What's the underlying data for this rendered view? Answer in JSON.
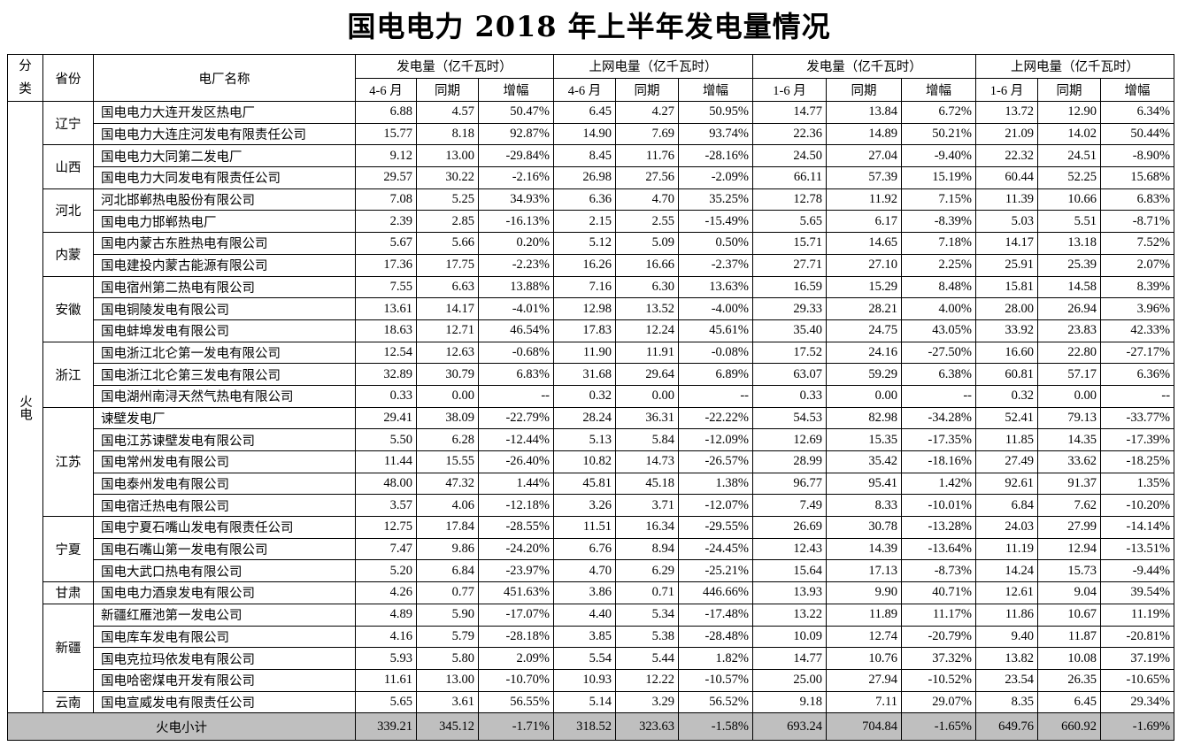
{
  "title": "国电电力 2018 年上半年发电量情况",
  "header": {
    "category": "分类",
    "category_line1": "分",
    "category_line2": "类",
    "province": "省份",
    "plant": "电厂名称",
    "groups": [
      "发电量（亿千瓦时）",
      "上网电量（亿千瓦时）",
      "发电量（亿千瓦时）",
      "上网电量（亿千瓦时）"
    ],
    "subs": [
      "4-6 月",
      "同期",
      "增幅",
      "4-6 月",
      "同期",
      "增幅",
      "1-6 月",
      "同期",
      "增幅",
      "1-6 月",
      "同期",
      "增幅"
    ]
  },
  "category": "火电",
  "provinces": [
    {
      "name": "辽宁",
      "plants": [
        [
          "国电电力大连开发区热电厂",
          "6.88",
          "4.57",
          "50.47%",
          "6.45",
          "4.27",
          "50.95%",
          "14.77",
          "13.84",
          "6.72%",
          "13.72",
          "12.90",
          "6.34%"
        ],
        [
          "国电电力大连庄河发电有限责任公司",
          "15.77",
          "8.18",
          "92.87%",
          "14.90",
          "7.69",
          "93.74%",
          "22.36",
          "14.89",
          "50.21%",
          "21.09",
          "14.02",
          "50.44%"
        ]
      ]
    },
    {
      "name": "山西",
      "plants": [
        [
          "国电电力大同第二发电厂",
          "9.12",
          "13.00",
          "-29.84%",
          "8.45",
          "11.76",
          "-28.16%",
          "24.50",
          "27.04",
          "-9.40%",
          "22.32",
          "24.51",
          "-8.90%"
        ],
        [
          "国电电力大同发电有限责任公司",
          "29.57",
          "30.22",
          "-2.16%",
          "26.98",
          "27.56",
          "-2.09%",
          "66.11",
          "57.39",
          "15.19%",
          "60.44",
          "52.25",
          "15.68%"
        ]
      ]
    },
    {
      "name": "河北",
      "plants": [
        [
          "河北邯郸热电股份有限公司",
          "7.08",
          "5.25",
          "34.93%",
          "6.36",
          "4.70",
          "35.25%",
          "12.78",
          "11.92",
          "7.15%",
          "11.39",
          "10.66",
          "6.83%"
        ],
        [
          "国电电力邯郸热电厂",
          "2.39",
          "2.85",
          "-16.13%",
          "2.15",
          "2.55",
          "-15.49%",
          "5.65",
          "6.17",
          "-8.39%",
          "5.03",
          "5.51",
          "-8.71%"
        ]
      ]
    },
    {
      "name": "内蒙",
      "plants": [
        [
          "国电内蒙古东胜热电有限公司",
          "5.67",
          "5.66",
          "0.20%",
          "5.12",
          "5.09",
          "0.50%",
          "15.71",
          "14.65",
          "7.18%",
          "14.17",
          "13.18",
          "7.52%"
        ],
        [
          "国电建投内蒙古能源有限公司",
          "17.36",
          "17.75",
          "-2.23%",
          "16.26",
          "16.66",
          "-2.37%",
          "27.71",
          "27.10",
          "2.25%",
          "25.91",
          "25.39",
          "2.07%"
        ]
      ]
    },
    {
      "name": "安徽",
      "plants": [
        [
          "国电宿州第二热电有限公司",
          "7.55",
          "6.63",
          "13.88%",
          "7.16",
          "6.30",
          "13.63%",
          "16.59",
          "15.29",
          "8.48%",
          "15.81",
          "14.58",
          "8.39%"
        ],
        [
          "国电铜陵发电有限公司",
          "13.61",
          "14.17",
          "-4.01%",
          "12.98",
          "13.52",
          "-4.00%",
          "29.33",
          "28.21",
          "4.00%",
          "28.00",
          "26.94",
          "3.96%"
        ],
        [
          "国电蚌埠发电有限公司",
          "18.63",
          "12.71",
          "46.54%",
          "17.83",
          "12.24",
          "45.61%",
          "35.40",
          "24.75",
          "43.05%",
          "33.92",
          "23.83",
          "42.33%"
        ]
      ]
    },
    {
      "name": "浙江",
      "plants": [
        [
          "国电浙江北仑第一发电有限公司",
          "12.54",
          "12.63",
          "-0.68%",
          "11.90",
          "11.91",
          "-0.08%",
          "17.52",
          "24.16",
          "-27.50%",
          "16.60",
          "22.80",
          "-27.17%"
        ],
        [
          "国电浙江北仑第三发电有限公司",
          "32.89",
          "30.79",
          "6.83%",
          "31.68",
          "29.64",
          "6.89%",
          "63.07",
          "59.29",
          "6.38%",
          "60.81",
          "57.17",
          "6.36%"
        ],
        [
          "国电湖州南浔天然气热电有限公司",
          "0.33",
          "0.00",
          "--",
          "0.32",
          "0.00",
          "--",
          "0.33",
          "0.00",
          "--",
          "0.32",
          "0.00",
          "--"
        ]
      ]
    },
    {
      "name": "江苏",
      "plants": [
        [
          "谏壁发电厂",
          "29.41",
          "38.09",
          "-22.79%",
          "28.24",
          "36.31",
          "-22.22%",
          "54.53",
          "82.98",
          "-34.28%",
          "52.41",
          "79.13",
          "-33.77%"
        ],
        [
          "国电江苏谏壁发电有限公司",
          "5.50",
          "6.28",
          "-12.44%",
          "5.13",
          "5.84",
          "-12.09%",
          "12.69",
          "15.35",
          "-17.35%",
          "11.85",
          "14.35",
          "-17.39%"
        ],
        [
          "国电常州发电有限公司",
          "11.44",
          "15.55",
          "-26.40%",
          "10.82",
          "14.73",
          "-26.57%",
          "28.99",
          "35.42",
          "-18.16%",
          "27.49",
          "33.62",
          "-18.25%"
        ],
        [
          "国电泰州发电有限公司",
          "48.00",
          "47.32",
          "1.44%",
          "45.81",
          "45.18",
          "1.38%",
          "96.77",
          "95.41",
          "1.42%",
          "92.61",
          "91.37",
          "1.35%"
        ],
        [
          "国电宿迁热电有限公司",
          "3.57",
          "4.06",
          "-12.18%",
          "3.26",
          "3.71",
          "-12.07%",
          "7.49",
          "8.33",
          "-10.01%",
          "6.84",
          "7.62",
          "-10.20%"
        ]
      ]
    },
    {
      "name": "宁夏",
      "plants": [
        [
          "国电宁夏石嘴山发电有限责任公司",
          "12.75",
          "17.84",
          "-28.55%",
          "11.51",
          "16.34",
          "-29.55%",
          "26.69",
          "30.78",
          "-13.28%",
          "24.03",
          "27.99",
          "-14.14%"
        ],
        [
          "国电石嘴山第一发电有限公司",
          "7.47",
          "9.86",
          "-24.20%",
          "6.76",
          "8.94",
          "-24.45%",
          "12.43",
          "14.39",
          "-13.64%",
          "11.19",
          "12.94",
          "-13.51%"
        ],
        [
          "国电大武口热电有限公司",
          "5.20",
          "6.84",
          "-23.97%",
          "4.70",
          "6.29",
          "-25.21%",
          "15.64",
          "17.13",
          "-8.73%",
          "14.24",
          "15.73",
          "-9.44%"
        ]
      ]
    },
    {
      "name": "甘肃",
      "plants": [
        [
          "国电电力酒泉发电有限公司",
          "4.26",
          "0.77",
          "451.63%",
          "3.86",
          "0.71",
          "446.66%",
          "13.93",
          "9.90",
          "40.71%",
          "12.61",
          "9.04",
          "39.54%"
        ]
      ]
    },
    {
      "name": "新疆",
      "plants": [
        [
          "新疆红雁池第一发电公司",
          "4.89",
          "5.90",
          "-17.07%",
          "4.40",
          "5.34",
          "-17.48%",
          "13.22",
          "11.89",
          "11.17%",
          "11.86",
          "10.67",
          "11.19%"
        ],
        [
          "国电库车发电有限公司",
          "4.16",
          "5.79",
          "-28.18%",
          "3.85",
          "5.38",
          "-28.48%",
          "10.09",
          "12.74",
          "-20.79%",
          "9.40",
          "11.87",
          "-20.81%"
        ],
        [
          "国电克拉玛依发电有限公司",
          "5.93",
          "5.80",
          "2.09%",
          "5.54",
          "5.44",
          "1.82%",
          "14.77",
          "10.76",
          "37.32%",
          "13.82",
          "10.08",
          "37.19%"
        ],
        [
          "国电哈密煤电开发有限公司",
          "11.61",
          "13.00",
          "-10.70%",
          "10.93",
          "12.22",
          "-10.57%",
          "25.00",
          "27.94",
          "-10.52%",
          "23.54",
          "26.35",
          "-10.65%"
        ]
      ]
    },
    {
      "name": "云南",
      "plants": [
        [
          "国电宣威发电有限责任公司",
          "5.65",
          "3.61",
          "56.55%",
          "5.14",
          "3.29",
          "56.52%",
          "9.18",
          "7.11",
          "29.07%",
          "8.35",
          "6.45",
          "29.34%"
        ]
      ]
    }
  ],
  "total": {
    "label": "火电小计",
    "values": [
      "339.21",
      "345.12",
      "-1.71%",
      "318.52",
      "323.63",
      "-1.58%",
      "693.24",
      "704.84",
      "-1.65%",
      "649.76",
      "660.92",
      "-1.69%"
    ]
  },
  "colors": {
    "total_row_bg": "#bfbfbf",
    "border": "#000000"
  }
}
